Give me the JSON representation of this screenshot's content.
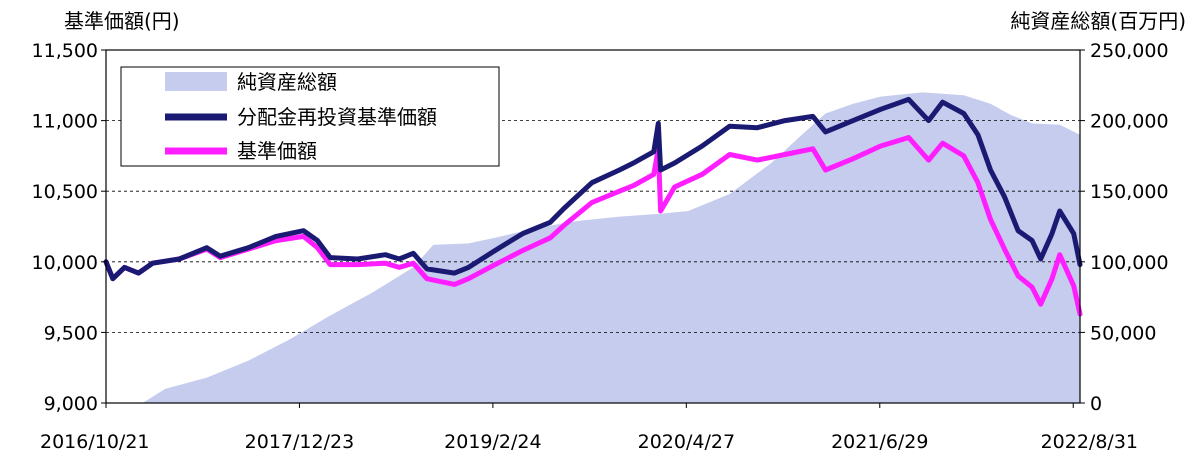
{
  "chart_data": {
    "type": "line",
    "y_left_label": "基準価額(円)",
    "y_right_label": "純資産総額(百万円)",
    "y_left_ticks": [
      "9,000",
      "9,500",
      "10,000",
      "10,500",
      "11,000",
      "11,500"
    ],
    "y_right_ticks": [
      "0",
      "50,000",
      "100,000",
      "150,000",
      "200,000",
      "250,000"
    ],
    "y_left_range": [
      9000,
      11500
    ],
    "y_right_range": [
      0,
      250000
    ],
    "x_ticks": [
      "2016/10/21",
      "2017/12/23",
      "2019/2/24",
      "2020/4/27",
      "2021/6/29",
      "2022/8/31"
    ],
    "x_range": [
      "2016/10/21",
      "2022/9/15"
    ],
    "grid": "horizontal dashed",
    "legend_position": "top-left",
    "colors": {
      "nav_total": "#c6cced",
      "reinvested": "#1a1a73",
      "nav": "#ff1eff"
    },
    "series": [
      {
        "name": "純資産総額",
        "kind": "area",
        "axis": "right",
        "points": [
          [
            "2016/10/21",
            0
          ],
          [
            "2017/1/10",
            0
          ],
          [
            "2017/3/1",
            10000
          ],
          [
            "2017/6/1",
            18000
          ],
          [
            "2017/9/1",
            30000
          ],
          [
            "2017/12/1",
            45000
          ],
          [
            "2018/3/1",
            62000
          ],
          [
            "2018/6/1",
            78000
          ],
          [
            "2018/9/1",
            96000
          ],
          [
            "2018/10/15",
            112000
          ],
          [
            "2019/1/1",
            113000
          ],
          [
            "2019/3/1",
            117000
          ],
          [
            "2019/6/1",
            124000
          ],
          [
            "2019/9/1",
            129000
          ],
          [
            "2019/12/1",
            132000
          ],
          [
            "2020/3/1",
            134000
          ],
          [
            "2020/5/1",
            136000
          ],
          [
            "2020/8/1",
            148000
          ],
          [
            "2020/11/1",
            170000
          ],
          [
            "2021/1/1",
            188000
          ],
          [
            "2021/3/1",
            205000
          ],
          [
            "2021/5/1",
            212000
          ],
          [
            "2021/7/1",
            217000
          ],
          [
            "2021/10/1",
            220000
          ],
          [
            "2022/1/1",
            218000
          ],
          [
            "2022/3/1",
            212000
          ],
          [
            "2022/4/15",
            204000
          ],
          [
            "2022/6/1",
            198000
          ],
          [
            "2022/8/1",
            197000
          ],
          [
            "2022/9/15",
            190000
          ]
        ]
      },
      {
        "name": "分配金再投資基準価額",
        "kind": "line",
        "axis": "left",
        "points": [
          [
            "2016/10/21",
            10000
          ],
          [
            "2016/11/5",
            9880
          ],
          [
            "2016/12/1",
            9960
          ],
          [
            "2017/1/1",
            9920
          ],
          [
            "2017/2/1",
            9990
          ],
          [
            "2017/4/1",
            10020
          ],
          [
            "2017/6/1",
            10100
          ],
          [
            "2017/7/1",
            10040
          ],
          [
            "2017/9/1",
            10100
          ],
          [
            "2017/11/1",
            10180
          ],
          [
            "2018/1/1",
            10220
          ],
          [
            "2018/2/1",
            10150
          ],
          [
            "2018/3/1",
            10030
          ],
          [
            "2018/5/1",
            10020
          ],
          [
            "2018/7/1",
            10050
          ],
          [
            "2018/8/1",
            10020
          ],
          [
            "2018/9/1",
            10060
          ],
          [
            "2018/10/1",
            9950
          ],
          [
            "2018/12/1",
            9920
          ],
          [
            "2019/1/1",
            9960
          ],
          [
            "2019/3/1",
            10080
          ],
          [
            "2019/5/1",
            10200
          ],
          [
            "2019/7/1",
            10280
          ],
          [
            "2019/8/1",
            10380
          ],
          [
            "2019/10/1",
            10560
          ],
          [
            "2019/12/1",
            10650
          ],
          [
            "2020/1/1",
            10700
          ],
          [
            "2020/2/15",
            10780
          ],
          [
            "2020/2/25",
            10980
          ],
          [
            "2020/3/1",
            10650
          ],
          [
            "2020/4/1",
            10700
          ],
          [
            "2020/6/1",
            10820
          ],
          [
            "2020/8/1",
            10960
          ],
          [
            "2020/10/1",
            10950
          ],
          [
            "2020/12/1",
            11000
          ],
          [
            "2021/2/1",
            11030
          ],
          [
            "2021/3/1",
            10920
          ],
          [
            "2021/5/1",
            11000
          ],
          [
            "2021/7/1",
            11080
          ],
          [
            "2021/9/1",
            11150
          ],
          [
            "2021/10/15",
            11000
          ],
          [
            "2021/11/15",
            11130
          ],
          [
            "2022/1/1",
            11050
          ],
          [
            "2022/2/1",
            10900
          ],
          [
            "2022/3/1",
            10650
          ],
          [
            "2022/4/1",
            10460
          ],
          [
            "2022/5/1",
            10220
          ],
          [
            "2022/6/1",
            10150
          ],
          [
            "2022/6/20",
            10020
          ],
          [
            "2022/7/15",
            10200
          ],
          [
            "2022/8/1",
            10360
          ],
          [
            "2022/9/1",
            10200
          ],
          [
            "2022/9/15",
            9980
          ]
        ]
      },
      {
        "name": "基準価額",
        "kind": "line",
        "axis": "left",
        "points": [
          [
            "2016/10/21",
            10000
          ],
          [
            "2016/11/5",
            9880
          ],
          [
            "2016/12/1",
            9960
          ],
          [
            "2017/1/1",
            9920
          ],
          [
            "2017/2/1",
            9990
          ],
          [
            "2017/4/1",
            10020
          ],
          [
            "2017/6/1",
            10090
          ],
          [
            "2017/7/1",
            10030
          ],
          [
            "2017/9/1",
            10090
          ],
          [
            "2017/11/1",
            10150
          ],
          [
            "2018/1/1",
            10180
          ],
          [
            "2018/2/1",
            10100
          ],
          [
            "2018/3/1",
            9980
          ],
          [
            "2018/5/1",
            9980
          ],
          [
            "2018/7/1",
            9990
          ],
          [
            "2018/8/1",
            9960
          ],
          [
            "2018/9/1",
            9990
          ],
          [
            "2018/10/1",
            9880
          ],
          [
            "2018/12/1",
            9840
          ],
          [
            "2019/1/1",
            9880
          ],
          [
            "2019/3/1",
            9980
          ],
          [
            "2019/5/1",
            10080
          ],
          [
            "2019/7/1",
            10170
          ],
          [
            "2019/8/1",
            10260
          ],
          [
            "2019/10/1",
            10420
          ],
          [
            "2019/12/1",
            10500
          ],
          [
            "2020/1/1",
            10540
          ],
          [
            "2020/2/15",
            10620
          ],
          [
            "2020/2/25",
            10800
          ],
          [
            "2020/3/1",
            10360
          ],
          [
            "2020/4/1",
            10530
          ],
          [
            "2020/6/1",
            10620
          ],
          [
            "2020/8/1",
            10760
          ],
          [
            "2020/10/1",
            10720
          ],
          [
            "2020/12/1",
            10760
          ],
          [
            "2021/2/1",
            10800
          ],
          [
            "2021/3/1",
            10650
          ],
          [
            "2021/5/1",
            10730
          ],
          [
            "2021/7/1",
            10820
          ],
          [
            "2021/9/1",
            10880
          ],
          [
            "2021/10/15",
            10720
          ],
          [
            "2021/11/15",
            10840
          ],
          [
            "2022/1/1",
            10750
          ],
          [
            "2022/2/1",
            10560
          ],
          [
            "2022/3/1",
            10300
          ],
          [
            "2022/4/1",
            10090
          ],
          [
            "2022/5/1",
            9900
          ],
          [
            "2022/6/1",
            9820
          ],
          [
            "2022/6/20",
            9700
          ],
          [
            "2022/7/15",
            9880
          ],
          [
            "2022/8/1",
            10050
          ],
          [
            "2022/9/1",
            9830
          ],
          [
            "2022/9/15",
            9630
          ]
        ]
      }
    ]
  }
}
